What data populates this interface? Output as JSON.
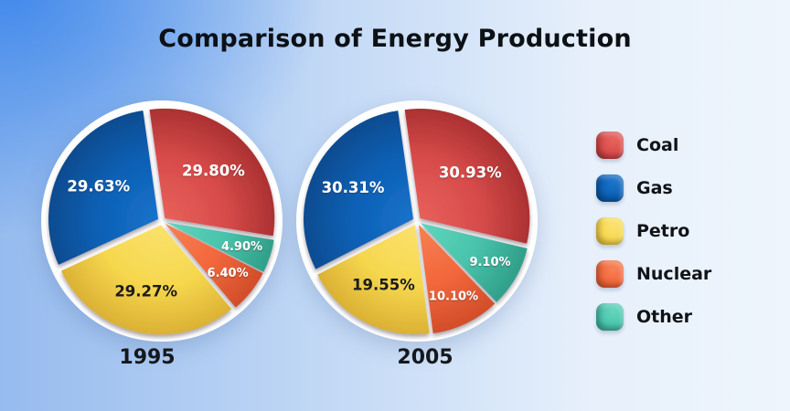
{
  "title": "Comparison of Energy Production",
  "background": {
    "corner_blue": "#3e87eb",
    "left_blue": "#96bbee",
    "right_pale": "#eef5fc"
  },
  "palette": {
    "coal": {
      "label": "Coal",
      "light": "#e8625c",
      "base": "#d74b4a",
      "dark": "#a82f30",
      "label_color": "#ffffff"
    },
    "gas": {
      "label": "Gas",
      "light": "#1a74cc",
      "base": "#0b60b5",
      "dark": "#084a8d",
      "label_color": "#ffffff"
    },
    "petro": {
      "label": "Petro",
      "light": "#fae26e",
      "base": "#f6d74e",
      "dark": "#d9ae32",
      "label_color": "#1b1b1d"
    },
    "nuclear": {
      "label": "Nuclear",
      "light": "#f78255",
      "base": "#f2673c",
      "dark": "#cf4c28",
      "label_color": "#ffffff"
    },
    "other": {
      "label": "Other",
      "light": "#63d6bf",
      "base": "#49c3ab",
      "dark": "#2f9c87",
      "label_color": "#ffffff"
    }
  },
  "legend": {
    "items": [
      {
        "label": "Coal",
        "color_key": "coal"
      },
      {
        "label": "Gas",
        "color_key": "gas"
      },
      {
        "label": "Petro",
        "color_key": "petro"
      },
      {
        "label": "Nuclear",
        "color_key": "nuclear"
      },
      {
        "label": "Other",
        "color_key": "other"
      }
    ]
  },
  "chart_data": [
    {
      "type": "pie",
      "title": "1995",
      "unit": "%",
      "start_angle_deg": -8,
      "slices": [
        {
          "label": "Coal",
          "color_key": "coal",
          "value": 29.8
        },
        {
          "label": "Other",
          "color_key": "other",
          "value": 4.9
        },
        {
          "label": "Nuclear",
          "color_key": "nuclear",
          "value": 6.4
        },
        {
          "label": "Petro",
          "color_key": "petro",
          "value": 29.27
        },
        {
          "label": "Gas",
          "color_key": "gas",
          "value": 29.63
        }
      ]
    },
    {
      "type": "pie",
      "title": "2005",
      "unit": "%",
      "start_angle_deg": -8,
      "slices": [
        {
          "label": "Coal",
          "color_key": "coal",
          "value": 30.93
        },
        {
          "label": "Other",
          "color_key": "other",
          "value": 9.1
        },
        {
          "label": "Nuclear",
          "color_key": "nuclear",
          "value": 10.1
        },
        {
          "label": "Petro",
          "color_key": "petro",
          "value": 19.55
        },
        {
          "label": "Gas",
          "color_key": "gas",
          "value": 30.31
        }
      ]
    }
  ]
}
